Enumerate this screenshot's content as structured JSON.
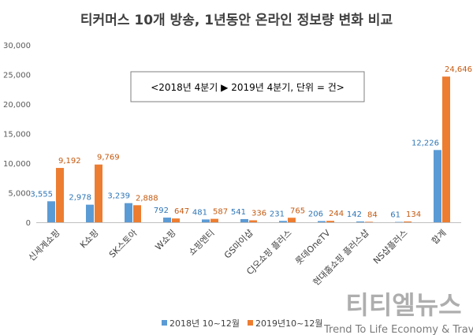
{
  "chart_data": {
    "type": "bar",
    "title": "티커머스 10개 방송, 1년동안 온라인 정보량 변화 비교",
    "annotation": "<2018년 4분기 ▶ 2019년 4분기, 단위 = 건>",
    "categories": [
      "신세계쇼핑",
      "K쇼핑",
      "SK스토아",
      "W쇼핑",
      "쇼핑엔티",
      "GS마이샵",
      "CJ오쇼핑 플러스",
      "롯데OneTV",
      "현대홈쇼핑 플러스샵",
      "NS샵플러스",
      "합계"
    ],
    "series": [
      {
        "name": "2018년 10~12월",
        "color": "#5b9bd5",
        "label_color": "#2e75b6",
        "values": [
          3555,
          2978,
          3239,
          792,
          481,
          541,
          231,
          206,
          142,
          61,
          12226
        ],
        "labels": [
          "3,555",
          "2,978",
          "3,239",
          "792",
          "481",
          "541",
          "231",
          "206",
          "142",
          "61",
          "12,226"
        ]
      },
      {
        "name": "2019년10~12월",
        "color": "#ed7d31",
        "label_color": "#c55a11",
        "values": [
          9192,
          9769,
          2888,
          647,
          587,
          336,
          765,
          244,
          84,
          134,
          24646
        ],
        "labels": [
          "9,192",
          "9,769",
          "2,888",
          "647",
          "587",
          "336",
          "765",
          "244",
          "84",
          "134",
          "24,646"
        ]
      }
    ],
    "ylim": [
      0,
      30000
    ],
    "yticks": [
      "0",
      "5,000",
      "10,000",
      "15,000",
      "20,000",
      "25,000",
      "30,000"
    ],
    "grid": false,
    "legend": "bottom"
  },
  "watermark": {
    "brand": "티티엘뉴스",
    "tagline": "Trend To Life Economy & Travel"
  }
}
